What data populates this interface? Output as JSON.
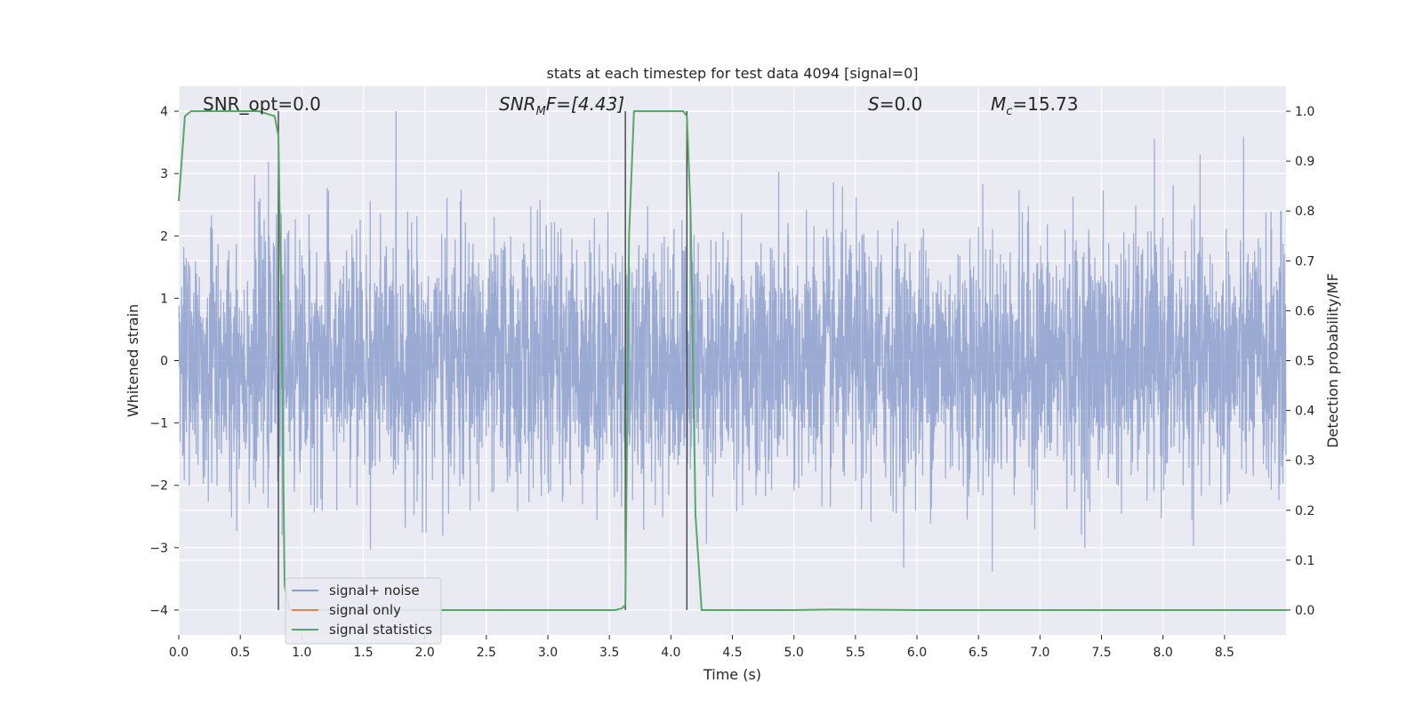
{
  "chart_data": {
    "type": "line",
    "title": "stats at each timestep for test data 4094 [signal=0]",
    "xlabel": "Time (s)",
    "ylabel": "Whitened strain",
    "y2label": "Detection probability/MF",
    "xlim": [
      0.0,
      9.0
    ],
    "ylim": [
      -4.4,
      4.4
    ],
    "y2lim": [
      -0.05,
      1.05
    ],
    "x_ticks": [
      "0.0",
      "0.5",
      "1.0",
      "1.5",
      "2.0",
      "2.5",
      "3.0",
      "3.5",
      "4.0",
      "4.5",
      "5.0",
      "5.5",
      "6.0",
      "6.5",
      "7.0",
      "7.5",
      "8.0",
      "8.5"
    ],
    "y_ticks": [
      "4",
      "3",
      "2",
      "1",
      "0",
      "−1",
      "−2",
      "−3",
      "−4"
    ],
    "y2_ticks": [
      "1.0",
      "0.9",
      "0.8",
      "0.7",
      "0.6",
      "0.5",
      "0.4",
      "0.3",
      "0.2",
      "0.1",
      "0.0"
    ],
    "grid": true,
    "legend_position": "lower-left",
    "annotations": {
      "snr_opt": "SNR_opt=0.0",
      "snr_mf_base": "SNR",
      "snr_mf_sub": "M",
      "snr_mf_rest": "F=[4.43]",
      "s_label": "S",
      "s_value": "=0.0",
      "mc_label": "M",
      "mc_sub": "c",
      "mc_value": "=15.73"
    },
    "vertical_lines_x": [
      0.81,
      3.63,
      4.13
    ],
    "series": [
      {
        "name": "signal+ noise",
        "color": "#8c9fcc",
        "description": "whitened strain noise, approx. Gaussian amplitude, range about -4 to 4",
        "envelope": {
          "x": [
            0.0,
            9.0
          ],
          "y": [
            -4.0,
            4.0
          ]
        }
      },
      {
        "name": "signal only",
        "color": "#dd8452",
        "x": [
          0.0,
          9.0
        ],
        "y": [
          0.0,
          0.0
        ]
      },
      {
        "name": "signal statistics",
        "color": "#55a868",
        "axis": "right",
        "x": [
          0.0,
          0.05,
          0.1,
          0.2,
          0.35,
          0.5,
          0.65,
          0.78,
          0.81,
          0.84,
          0.86,
          0.9,
          1.2,
          2.0,
          3.0,
          3.55,
          3.6,
          3.63,
          3.66,
          3.7,
          3.8,
          4.0,
          4.1,
          4.13,
          4.16,
          4.2,
          4.25,
          4.3,
          4.5,
          5.0,
          5.3,
          6.0,
          7.0,
          8.0,
          9.0
        ],
        "y": [
          0.82,
          0.99,
          1.0,
          1.0,
          1.0,
          1.0,
          1.0,
          0.99,
          0.95,
          0.5,
          0.05,
          0.0,
          0.0,
          0.0,
          0.0,
          0.0,
          0.003,
          0.01,
          0.75,
          1.0,
          1.0,
          1.0,
          1.0,
          0.99,
          0.8,
          0.19,
          0.0,
          0.0,
          0.0,
          0.0,
          0.001,
          0.0,
          0.0,
          0.0,
          0.0
        ]
      }
    ]
  }
}
